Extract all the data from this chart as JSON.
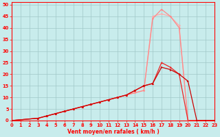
{
  "xlabel": "Vent moyen/en rafales ( km/h )",
  "xlim": [
    0,
    23
  ],
  "ylim": [
    0,
    51
  ],
  "xticks": [
    0,
    1,
    2,
    3,
    4,
    5,
    6,
    7,
    8,
    9,
    10,
    11,
    12,
    13,
    14,
    15,
    16,
    17,
    18,
    19,
    20,
    21,
    22,
    23
  ],
  "yticks": [
    0,
    5,
    10,
    15,
    20,
    25,
    30,
    35,
    40,
    45,
    50
  ],
  "bg_color": "#c8ecec",
  "grid_color": "#a0c8c8",
  "line1_x": [
    0,
    3,
    4,
    5,
    6,
    7,
    8,
    9,
    10,
    11,
    12,
    13,
    14,
    15,
    16,
    17,
    18,
    19,
    20,
    21,
    22,
    23
  ],
  "line1_y": [
    0,
    1,
    2,
    3,
    4,
    5,
    6,
    7,
    8,
    9,
    10,
    11,
    12,
    13,
    45,
    46,
    45,
    41,
    0,
    0,
    0,
    0
  ],
  "line1_color": "#ffaaaa",
  "line1_lw": 0.9,
  "line2_x": [
    0,
    3,
    4,
    5,
    6,
    7,
    8,
    9,
    10,
    11,
    12,
    13,
    14,
    15,
    16,
    17,
    18,
    19,
    20,
    21,
    22,
    23
  ],
  "line2_y": [
    0,
    1,
    2,
    3,
    4,
    5,
    6,
    7,
    8,
    9,
    10,
    11,
    12,
    13,
    44,
    48,
    45,
    40,
    0,
    0,
    0,
    0
  ],
  "line2_color": "#ff8888",
  "line2_lw": 0.9,
  "line3_x": [
    0,
    3,
    4,
    5,
    6,
    7,
    8,
    9,
    10,
    11,
    12,
    13,
    14,
    15,
    16,
    17,
    18,
    19,
    20,
    21,
    22,
    23
  ],
  "line3_y": [
    0,
    1,
    2,
    3,
    4,
    5,
    6,
    7,
    8,
    9,
    10,
    11,
    13,
    15,
    16,
    25,
    23,
    20,
    0,
    0,
    0,
    0
  ],
  "line3_color": "#ee2222",
  "line3_lw": 0.9,
  "line4_x": [
    0,
    3,
    4,
    5,
    6,
    7,
    8,
    9,
    10,
    11,
    12,
    13,
    14,
    15,
    16,
    17,
    18,
    19,
    20,
    21,
    22,
    23
  ],
  "line4_y": [
    0,
    1,
    2,
    3,
    4,
    5,
    6,
    7,
    8,
    9,
    10,
    11,
    13,
    15,
    16,
    23,
    22,
    20,
    17,
    0,
    0,
    0
  ],
  "line4_color": "#cc0000",
  "line4_lw": 0.9,
  "marker_color": "#ff4444",
  "marker_size": 1.8,
  "xlabel_fontsize": 5.5,
  "tick_fontsize": 4.8
}
